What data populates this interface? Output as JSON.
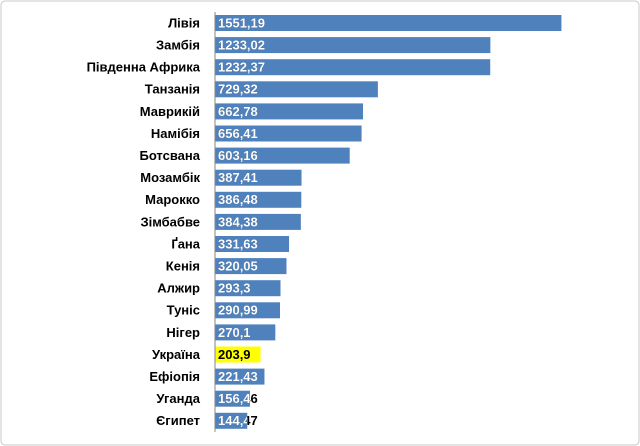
{
  "chart_data": {
    "type": "bar",
    "orientation": "horizontal",
    "categories": [
      "Лівія",
      "Замбія",
      "Південна Африка",
      "Танзанія",
      "Маврикій",
      "Намібія",
      "Ботсвана",
      "Мозамбік",
      "Марокко",
      "Зімбабве",
      "Ґана",
      "Кенія",
      "Алжир",
      "Туніс",
      "Нігер",
      "Україна",
      "Ефіопія",
      "Уганда",
      "Єгипет"
    ],
    "values": [
      1551.19,
      1233.02,
      1232.37,
      729.32,
      662.78,
      656.41,
      603.16,
      387.41,
      386.48,
      384.38,
      331.63,
      320.05,
      293.3,
      290.99,
      270.1,
      203.9,
      221.43,
      156.46,
      144.47
    ],
    "value_labels": [
      "1551,19",
      "1233,02",
      "1232,37",
      "729,32",
      "662,78",
      "656,41",
      "603,16",
      "387,41",
      "386,48",
      "384,38",
      "331,63",
      "320,05",
      "293,3",
      "290,99",
      "270,1",
      "203,9",
      "221,43",
      "156,46",
      "144,47"
    ],
    "colors": [
      "#4f81bd",
      "#4f81bd",
      "#4f81bd",
      "#4f81bd",
      "#4f81bd",
      "#4f81bd",
      "#4f81bd",
      "#4f81bd",
      "#4f81bd",
      "#4f81bd",
      "#4f81bd",
      "#4f81bd",
      "#4f81bd",
      "#4f81bd",
      "#4f81bd",
      "#ffff00",
      "#4f81bd",
      "#4f81bd",
      "#4f81bd"
    ],
    "xlim": [
      0,
      1800
    ]
  }
}
